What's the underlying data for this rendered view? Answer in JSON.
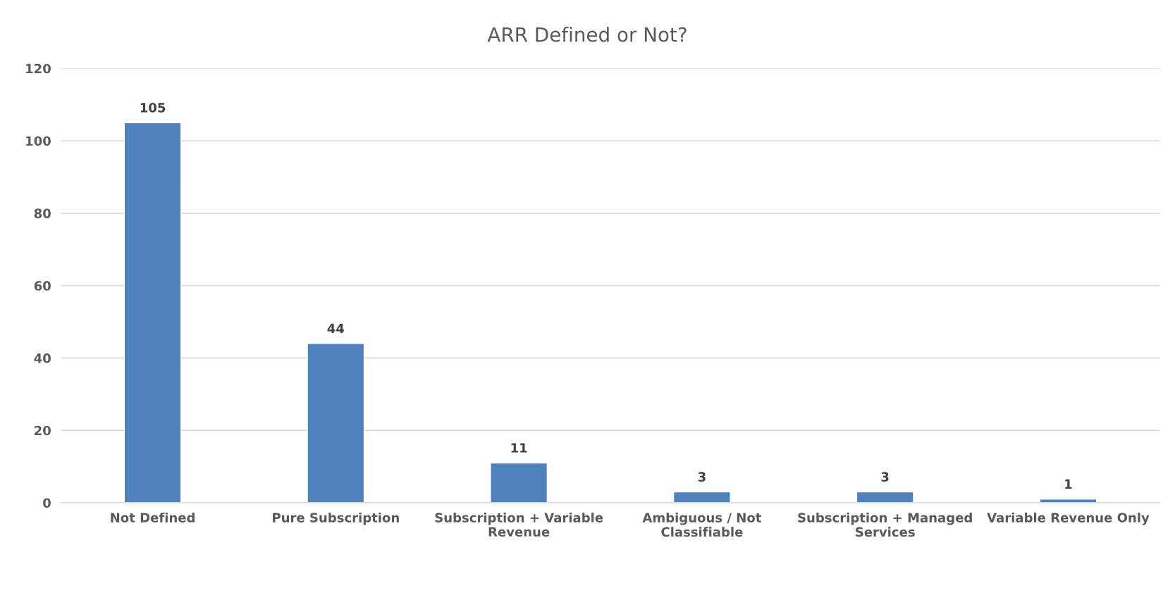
{
  "chart_data": {
    "type": "bar",
    "title": "ARR Defined or Not?",
    "categories": [
      "Not Defined",
      "Pure Subscription",
      "Subscription + Variable Revenue",
      "Ambiguous / Not Classifiable",
      "Subscription + Managed Services",
      "Variable Revenue Only"
    ],
    "values": [
      105,
      44,
      11,
      3,
      3,
      1
    ],
    "color": "#4f81bd",
    "ylim": [
      0,
      120
    ],
    "yticks": [
      0,
      20,
      40,
      60,
      80,
      100,
      120
    ],
    "grid": "y",
    "data_labels": true,
    "legend": false
  }
}
